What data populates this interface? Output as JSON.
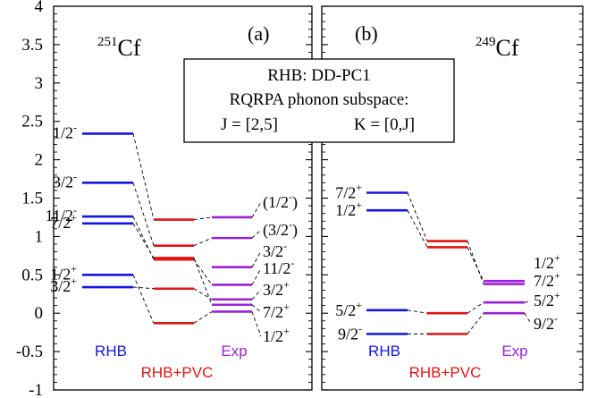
{
  "chart_data": [
    {
      "type": "level-scheme",
      "panel_label": "(a)",
      "nucleus": {
        "mass": "251",
        "symbol": "Cf"
      },
      "ylim": [
        -1,
        4
      ],
      "yticks": [
        "-1",
        "-0.5",
        "0",
        "0.5",
        "1",
        "1.5",
        "2",
        "2.5",
        "3",
        "3.5",
        "4"
      ],
      "columns": [
        {
          "name": "RHB",
          "color": "#1515e0"
        },
        {
          "name": "RHB+PVC",
          "color": "#e01515"
        },
        {
          "name": "Exp",
          "color": "#9a22d6"
        }
      ],
      "levels": [
        {
          "spin": "1/2",
          "parity": "-",
          "rhb": 2.34,
          "pvc": 1.22,
          "exp": 1.25,
          "exp_spin": "(1/2",
          "exp_parity": "-",
          "exp_suffix": ")"
        },
        {
          "spin": "3/2",
          "parity": "-",
          "rhb": 1.7,
          "pvc": 0.88,
          "exp": 0.98,
          "exp_spin": "(3/2",
          "exp_parity": "-",
          "exp_suffix": ")"
        },
        {
          "spin": "11/2",
          "parity": "-",
          "rhb": 1.26,
          "pvc": 0.7,
          "exp": 0.37,
          "exp_spin": "11/2",
          "exp_parity": "-",
          "exp_suffix": ""
        },
        {
          "spin": "7/2",
          "parity": "+",
          "rhb": 1.17,
          "pvc": 0.72,
          "exp": 0.11,
          "exp_spin": "7/2",
          "exp_parity": "+",
          "exp_suffix": ""
        },
        {
          "spin": "1/2",
          "parity": "+",
          "rhb": 0.5,
          "pvc": -0.13,
          "exp": 0.02,
          "exp_spin": "1/2",
          "exp_parity": "+",
          "exp_suffix": ""
        },
        {
          "spin": "3/2",
          "parity": "+",
          "rhb": 0.34,
          "pvc": 0.32,
          "exp": 0.18,
          "exp_spin": "3/2",
          "exp_parity": "+",
          "exp_suffix": ""
        }
      ],
      "extra_exp_levels": [
        {
          "spin": "3/2",
          "parity": "-",
          "exp": 0.6
        }
      ]
    },
    {
      "type": "level-scheme",
      "panel_label": "(b)",
      "nucleus": {
        "mass": "249",
        "symbol": "Cf"
      },
      "ylim": [
        -1,
        4
      ],
      "columns": [
        {
          "name": "RHB",
          "color": "#1515e0"
        },
        {
          "name": "RHB+PVC",
          "color": "#e01515"
        },
        {
          "name": "Exp",
          "color": "#9a22d6"
        }
      ],
      "levels": [
        {
          "spin": "7/2",
          "parity": "+",
          "rhb": 1.57,
          "pvc": 0.94,
          "exp": 0.38,
          "exp_spin": "7/2",
          "exp_parity": "+"
        },
        {
          "spin": "1/2",
          "parity": "+",
          "rhb": 1.34,
          "pvc": 0.86,
          "exp": 0.42,
          "exp_spin": "1/2",
          "exp_parity": "+"
        },
        {
          "spin": "5/2",
          "parity": "+",
          "rhb": 0.04,
          "pvc": 0.0,
          "exp": 0.14,
          "exp_spin": "5/2",
          "exp_parity": "+"
        },
        {
          "spin": "9/2",
          "parity": "-",
          "rhb": -0.27,
          "pvc": -0.27,
          "exp": 0.0,
          "exp_spin": "9/2",
          "exp_parity": "-"
        }
      ]
    }
  ],
  "info_box": {
    "line1": "RHB: DD-PC1",
    "line2": "RQRPA phonon subspace:",
    "line3_left": "J = [2,5]",
    "line3_right": "K = [0,J]"
  }
}
